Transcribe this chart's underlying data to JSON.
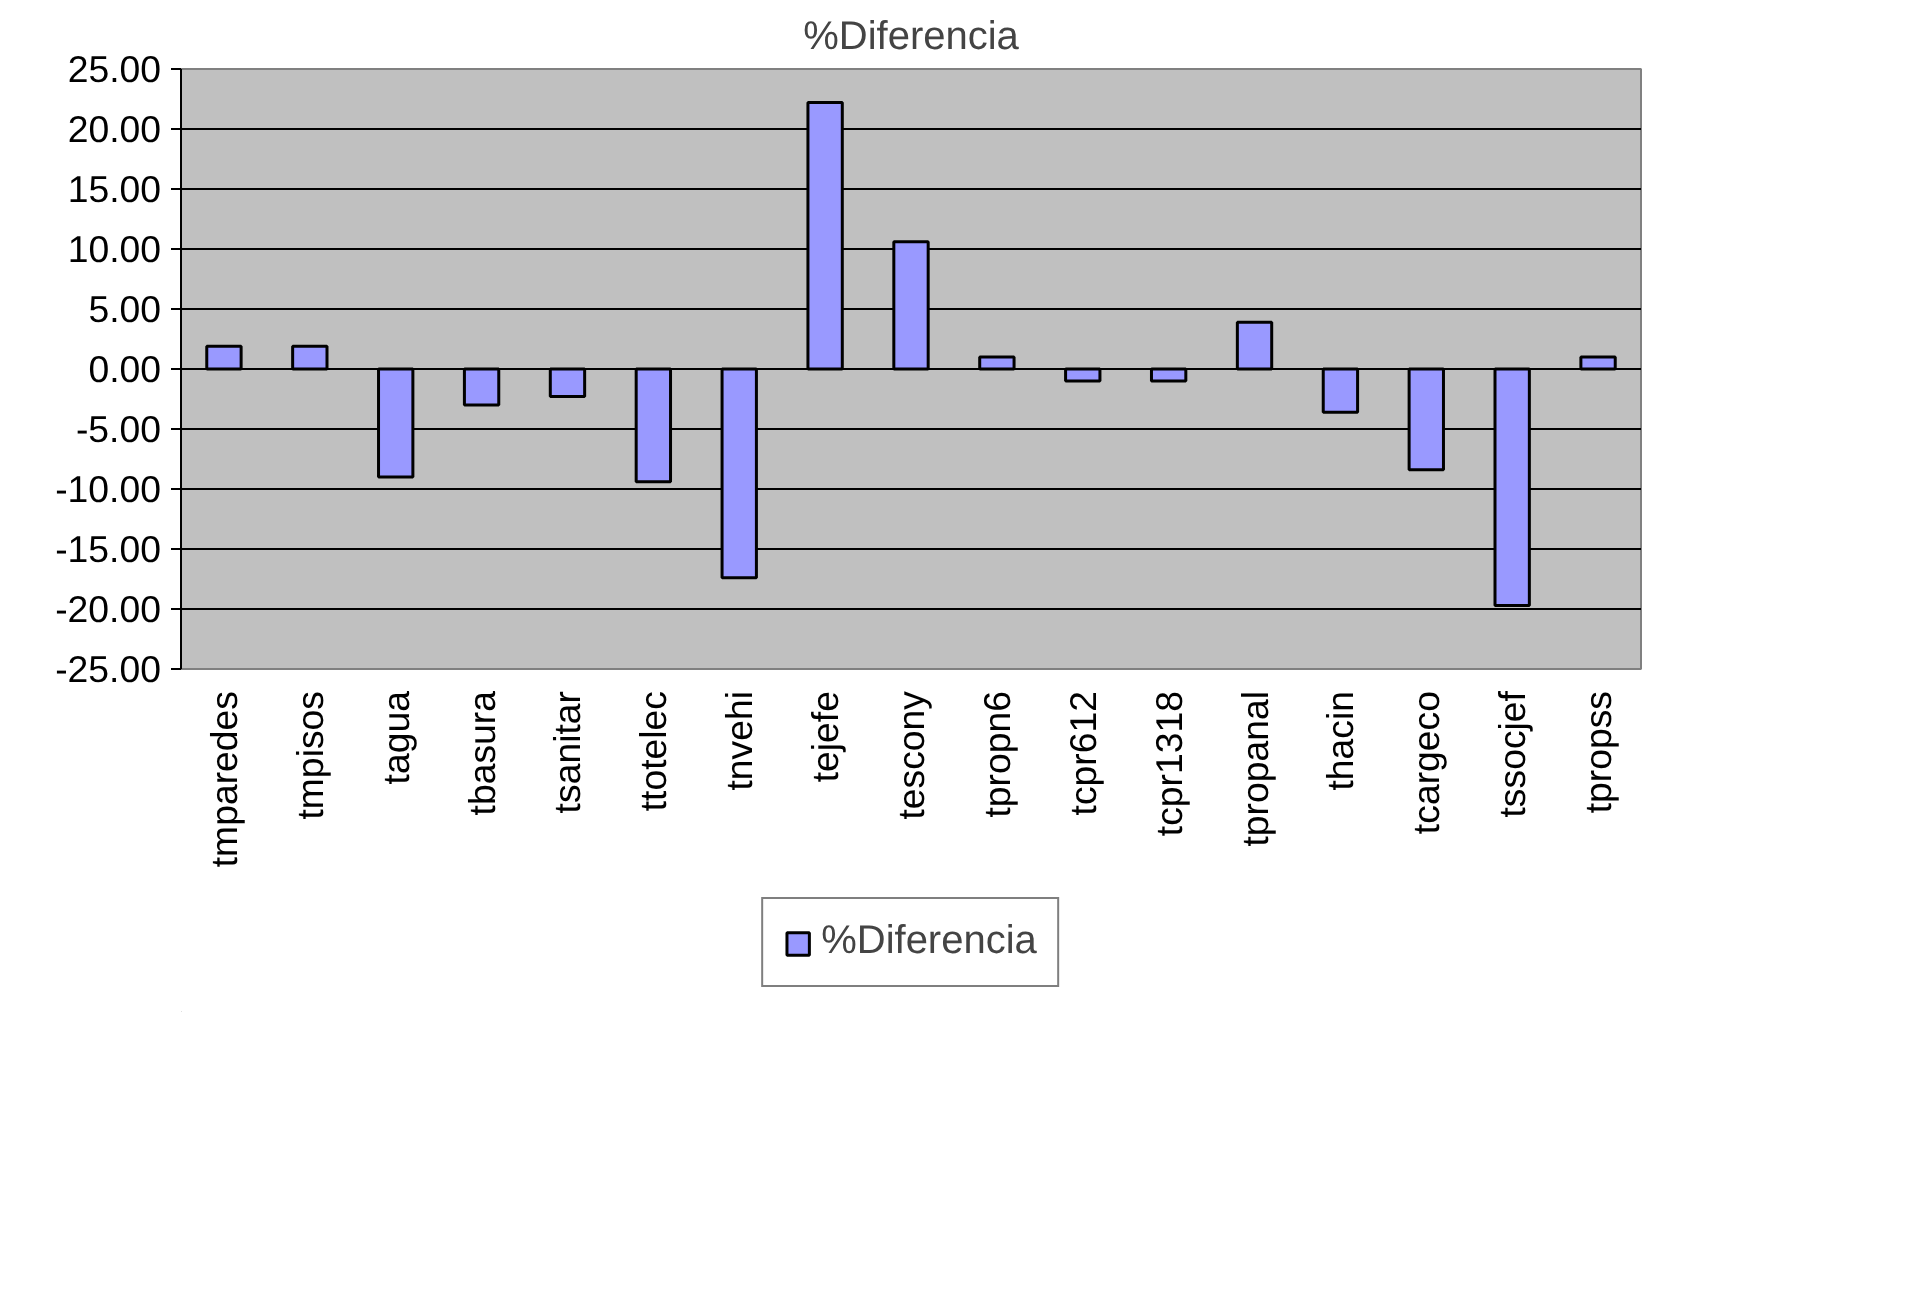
{
  "chart_data": {
    "type": "bar",
    "title": "%Diferencia",
    "categories": [
      "tmparedes",
      "tmpisos",
      "tagua",
      "tbasura",
      "tsanitar",
      "ttotelec",
      "tnvehi",
      "tejefe",
      "tescony",
      "tpropn6",
      "tcpr612",
      "tcpr1318",
      "tpropanal",
      "thacin",
      "tcargeco",
      "tssocjef",
      "tpropss"
    ],
    "series": [
      {
        "name": "%Diferencia",
        "color": "#9999ff",
        "values": [
          1.9,
          1.9,
          -9.0,
          -3.0,
          -2.3,
          -9.4,
          -17.4,
          22.2,
          10.6,
          1.0,
          -1.0,
          -1.0,
          3.9,
          -3.6,
          -8.4,
          -19.7,
          1.0
        ]
      }
    ],
    "ylim": [
      -25,
      25
    ],
    "yticks": [
      {
        "value": -25,
        "label": "-25.00"
      },
      {
        "value": -20,
        "label": "-20.00"
      },
      {
        "value": -15,
        "label": "-15.00"
      },
      {
        "value": -10,
        "label": "-10.00"
      },
      {
        "value": -5,
        "label": "-5.00"
      },
      {
        "value": 0,
        "label": "0.00"
      },
      {
        "value": 5,
        "label": "5.00"
      },
      {
        "value": 10,
        "label": "10.00"
      },
      {
        "value": 15,
        "label": "15.00"
      },
      {
        "value": 20,
        "label": "20.00"
      },
      {
        "value": 25,
        "label": "25.00"
      }
    ],
    "grid": "y",
    "legend": "bottom"
  }
}
